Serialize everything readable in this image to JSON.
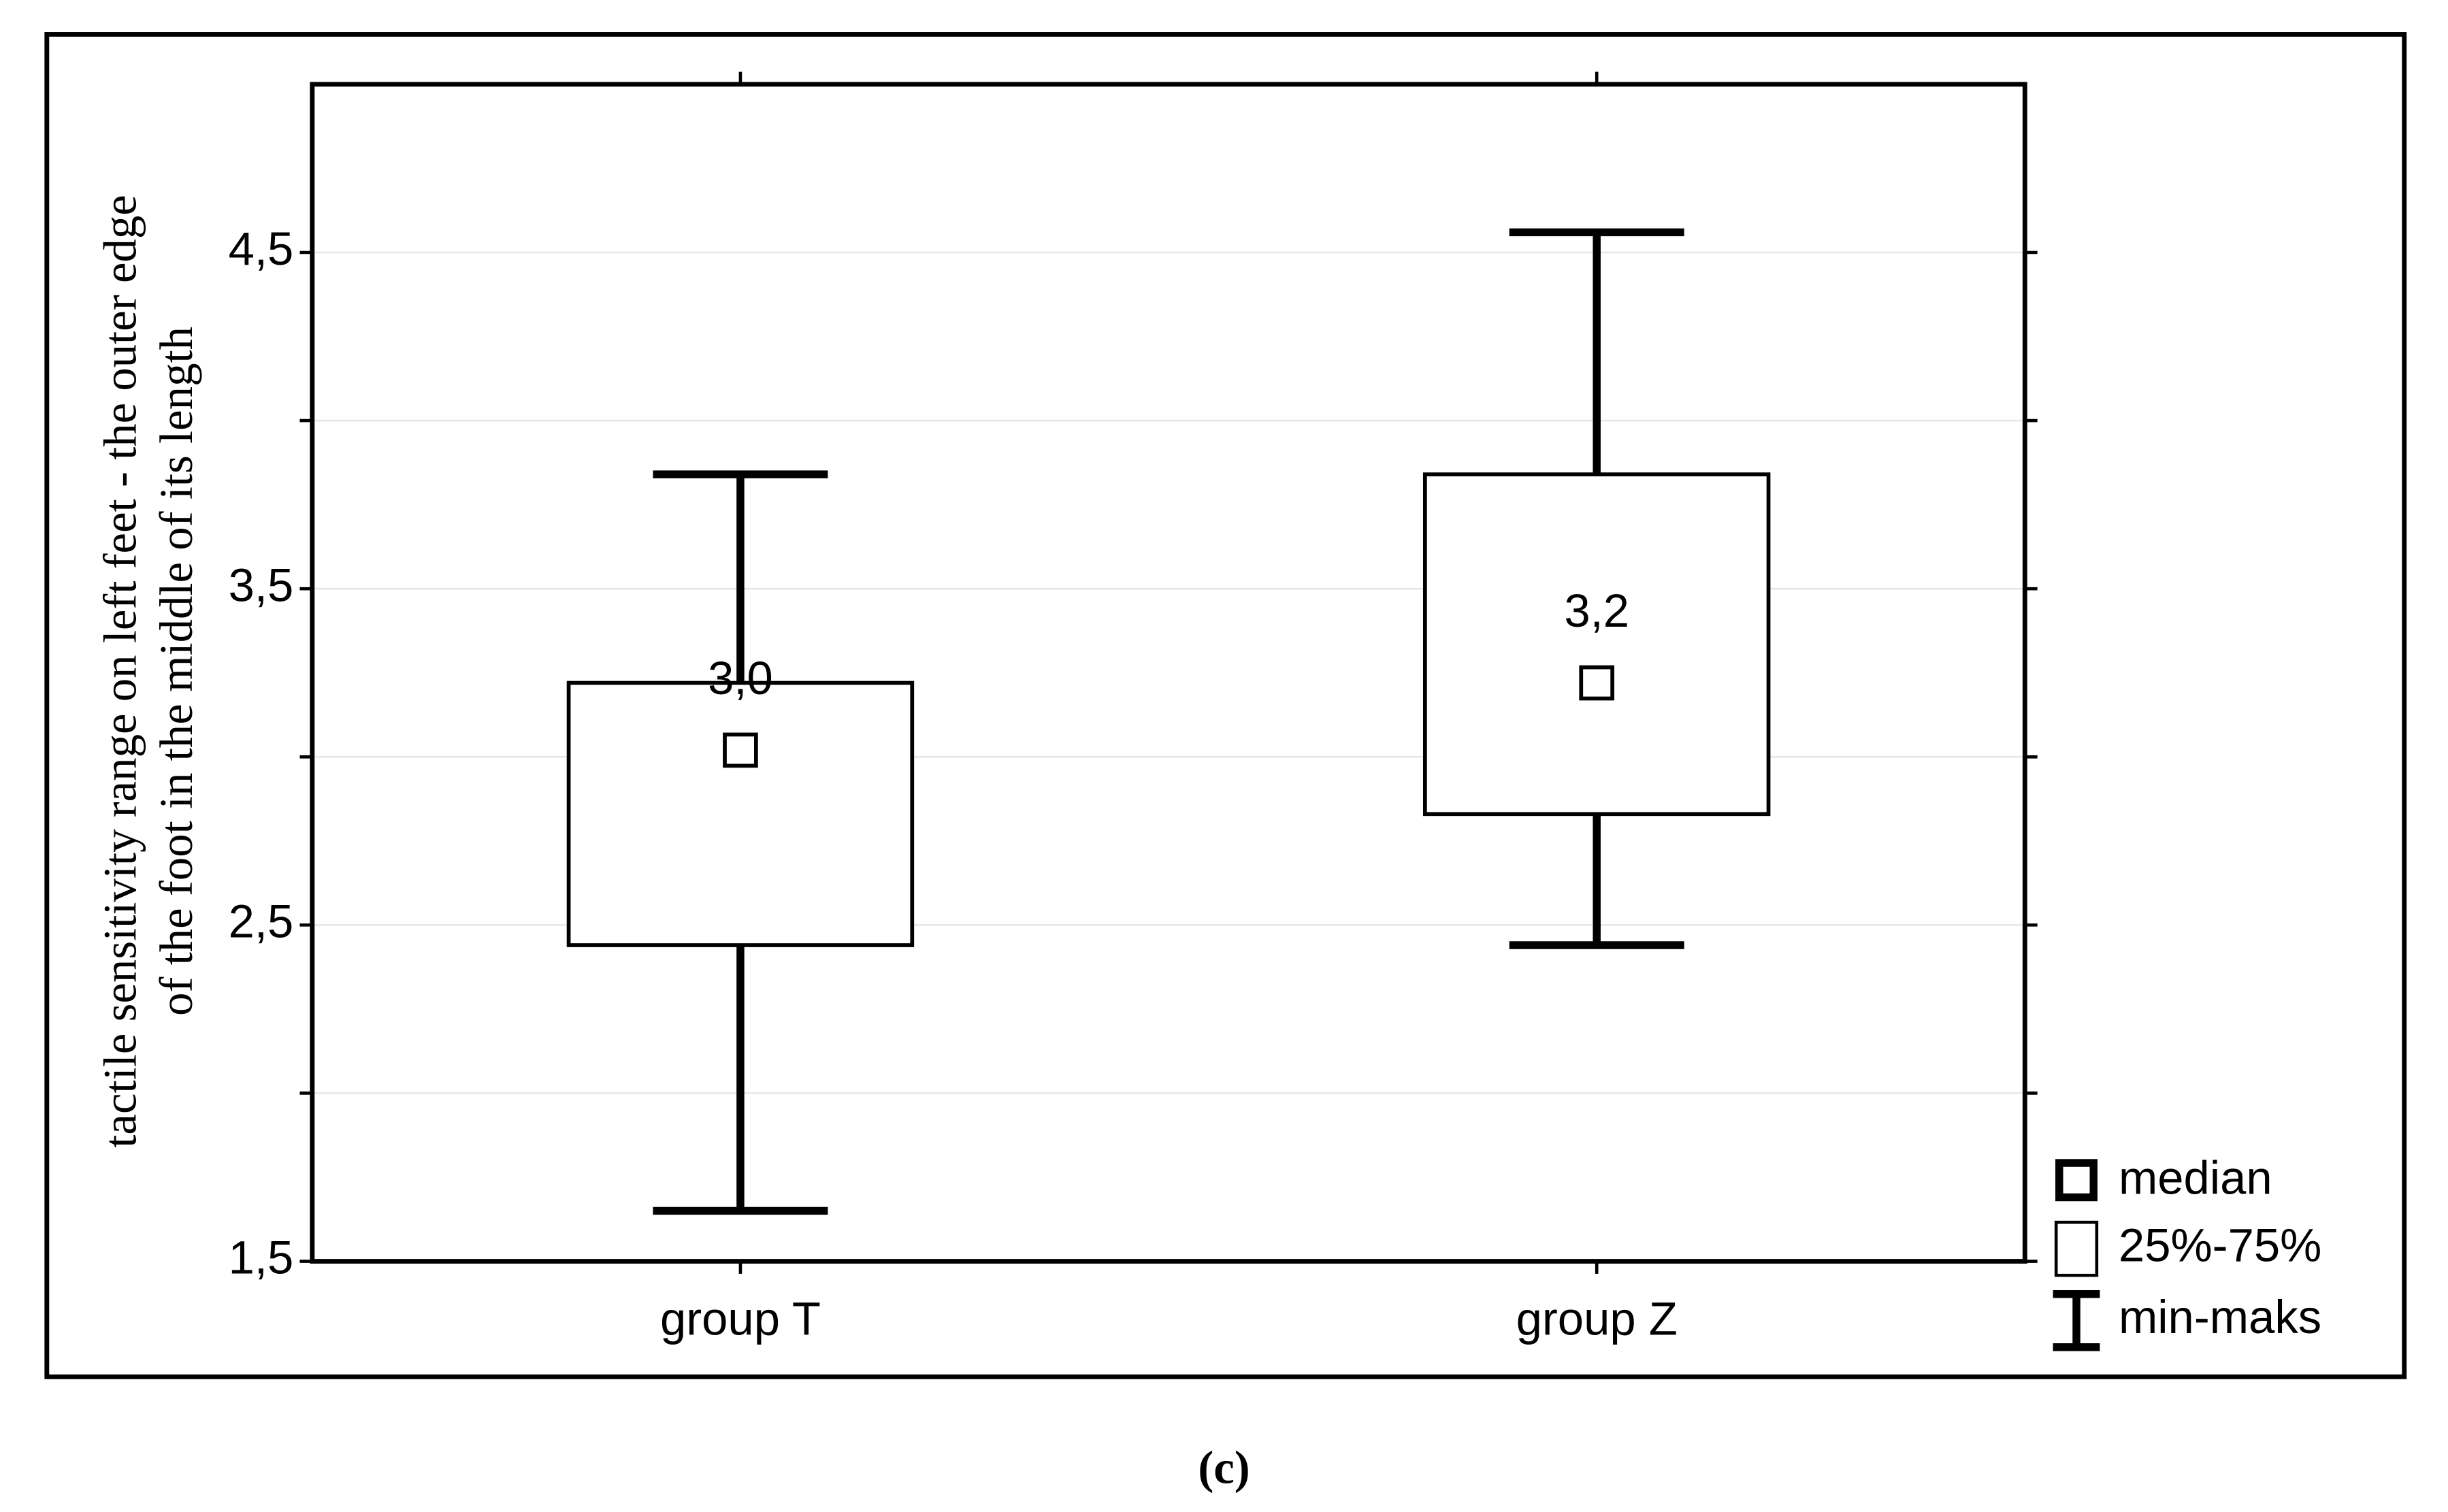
{
  "chart_data": {
    "type": "box",
    "y_label": [
      "tactile sensitivity range on left feet - the outer edge",
      "of the foot in the middle of its length"
    ],
    "categories": [
      "group T",
      "group Z"
    ],
    "min": [
      1.65,
      2.44
    ],
    "q1": [
      2.44,
      2.83
    ],
    "median": [
      3.02,
      3.22
    ],
    "median_labels": [
      "3,0",
      "3,2"
    ],
    "q3": [
      3.22,
      3.84
    ],
    "max": [
      3.84,
      4.56
    ],
    "ylim": [
      1.5,
      5.0
    ],
    "yticks": [
      {
        "value": 1.5,
        "label": "1,5"
      },
      {
        "value": 2.5,
        "label": "2,5"
      },
      {
        "value": 3.5,
        "label": "3,5"
      },
      {
        "value": 4.5,
        "label": "4,5"
      }
    ],
    "minor_yticks": [
      2.0,
      3.0,
      4.0
    ],
    "grid": true,
    "color": "#000000",
    "legend": [
      "median",
      "25%-75%",
      "min-maks"
    ],
    "legend_position": "bottom-right",
    "caption": "(c)"
  }
}
